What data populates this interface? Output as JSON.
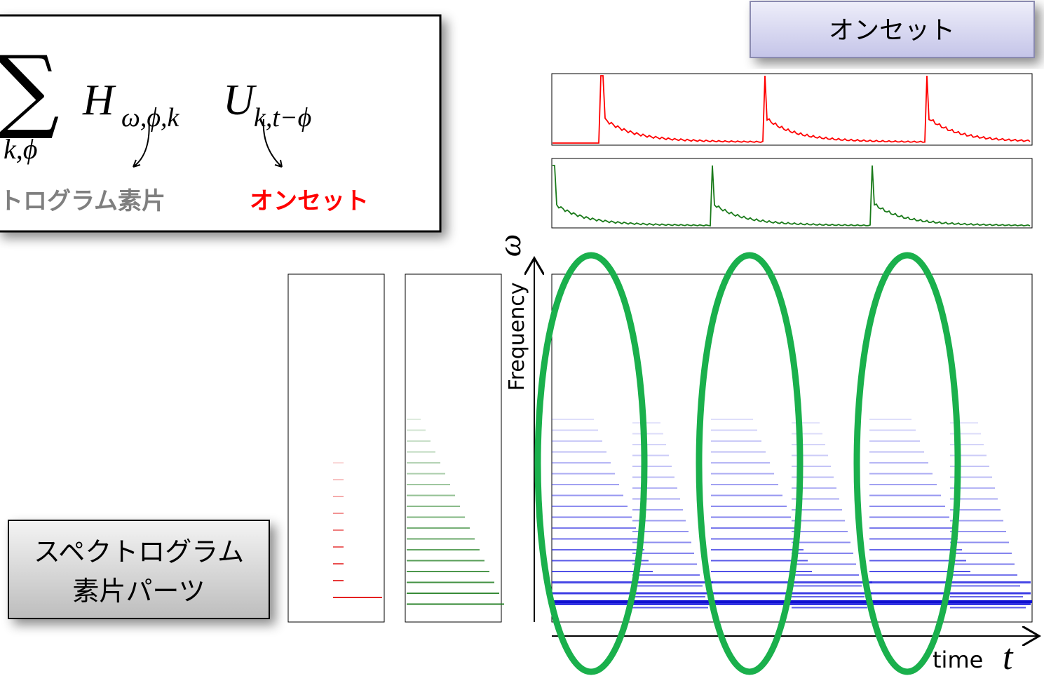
{
  "formula": {
    "sum": "∑",
    "sum_sub": "k,ϕ",
    "H": "H",
    "H_sub": "ω,ϕ,k",
    "U": "U",
    "U_sub": "k,t−ϕ",
    "label_parts": "クトログラム素片",
    "label_onset": "オンセット"
  },
  "onset_button": "オンセット",
  "parts_box": {
    "line1": "スペクトログラム",
    "line2": "素片パーツ"
  },
  "axes": {
    "y_label": "Frequency",
    "y_symbol": "ω",
    "x_label": "time",
    "x_symbol": "t"
  }
}
